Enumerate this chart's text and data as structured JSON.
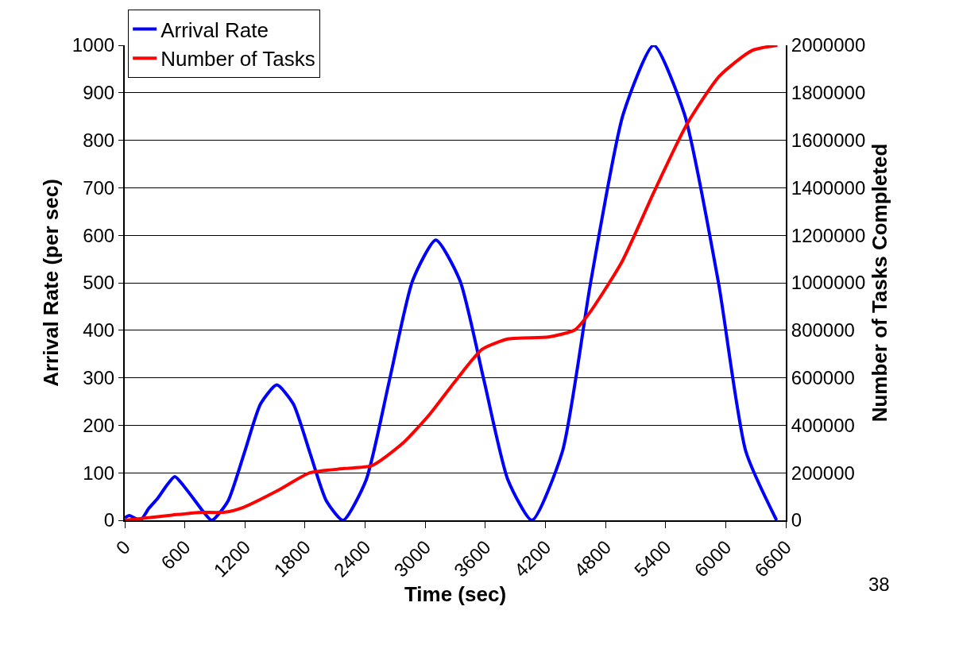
{
  "chart_data": {
    "type": "line",
    "xlabel": "Time (sec)",
    "ylabel": "Arrival Rate (per sec)",
    "y2label": "Number of Tasks Completed",
    "series": [
      {
        "name": "Arrival Rate",
        "color": "#0000ff",
        "x": [
          0,
          45,
          156,
          240,
          328,
          414,
          500,
          590,
          685,
          778,
          870,
          1030,
          1194,
          1356,
          1518,
          1683,
          1849,
          2015,
          2180,
          2410,
          2643,
          2875,
          3106,
          3346,
          3586,
          3826,
          4066,
          4370,
          4651,
          4977,
          5281,
          5588,
          5928,
          6201,
          6508
        ],
        "values": [
          5,
          10,
          0,
          25,
          46,
          72,
          92,
          72,
          46,
          20,
          0,
          40,
          142,
          245,
          285,
          245,
          142,
          40,
          0,
          85,
          295,
          505,
          590,
          505,
          295,
          85,
          0,
          145,
          500,
          855,
          1000,
          855,
          500,
          145,
          0
        ]
      },
      {
        "name": "Number of Tasks",
        "color": "#ff0000",
        "axis": "y2",
        "x": [
          0,
          474,
          738,
          1000,
          1188,
          1532,
          1849,
          2191,
          2468,
          2775,
          3040,
          3304,
          3569,
          3834,
          4231,
          4495,
          4635,
          4961,
          5286,
          5611,
          5937,
          6262,
          6516
        ],
        "values": [
          0,
          22000,
          33000,
          34000,
          55000,
          126000,
          200000,
          218000,
          230000,
          324000,
          444000,
          588000,
          720000,
          764000,
          772000,
          802000,
          870000,
          1086000,
          1384000,
          1666000,
          1870000,
          1978000,
          2000000
        ]
      }
    ],
    "xlim": [
      0,
      6600
    ],
    "xticks": [
      0,
      600,
      1200,
      1800,
      2400,
      3000,
      3600,
      4200,
      4800,
      5400,
      6000,
      6600
    ],
    "ylim": [
      0,
      1000
    ],
    "yticks": [
      0,
      100,
      200,
      300,
      400,
      500,
      600,
      700,
      800,
      900,
      1000
    ],
    "y2lim": [
      0,
      2000000
    ],
    "y2ticks": [
      0,
      200000,
      400000,
      600000,
      800000,
      1000000,
      1200000,
      1400000,
      1600000,
      1800000,
      2000000
    ],
    "grid": "y",
    "legend": "top left",
    "marker": "none",
    "line_style": "solid",
    "annotations": [
      "38"
    ]
  }
}
